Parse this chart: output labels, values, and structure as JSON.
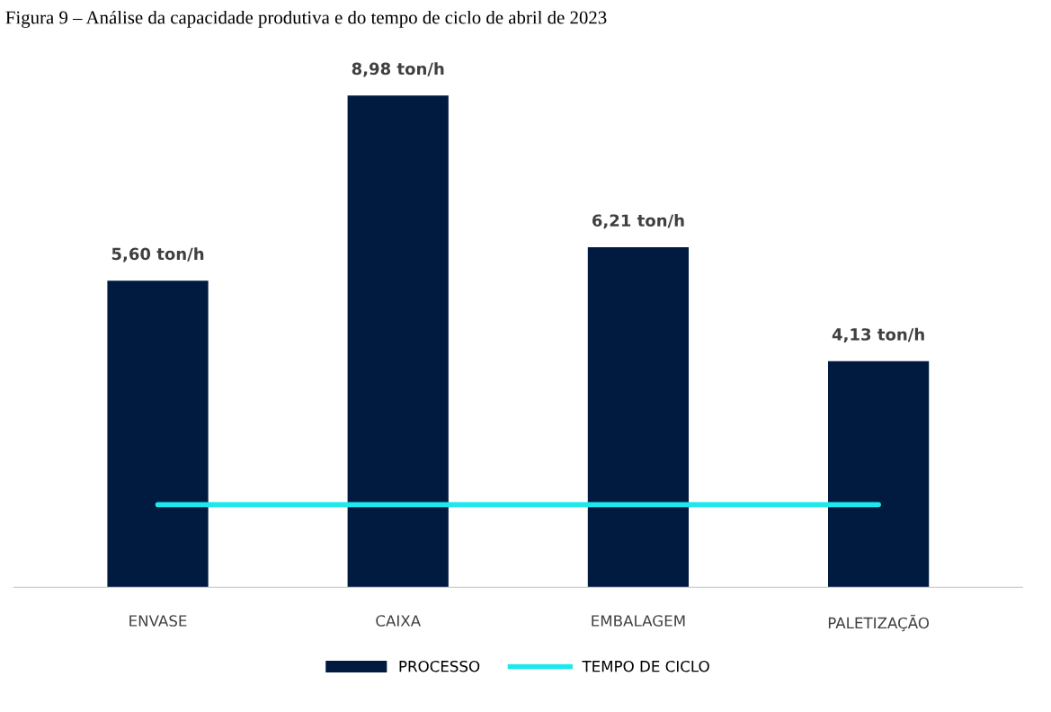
{
  "chart_data": {
    "type": "bar",
    "title": "Figura 9 – Análise da capacidade produtiva e do tempo de ciclo de abril de 2023",
    "categories": [
      "ENVASE",
      "CAIXA",
      "EMBALAGEM",
      "PALETIZAÇÃO"
    ],
    "series": [
      {
        "name": "PROCESSO",
        "color": "#001a40",
        "values": [
          5.6,
          8.98,
          6.21,
          4.13
        ],
        "value_labels": [
          "5,60 ton/h",
          "8,98 ton/h",
          "6,21 ton/h",
          "4,13 ton/h"
        ]
      },
      {
        "name": "TEMPO DE CICLO",
        "type": "line",
        "color": "#1ee8ee",
        "values": [
          1.51,
          1.51,
          1.51,
          1.51
        ]
      }
    ],
    "legend": "bottom",
    "grid": false,
    "tick_labels": "x"
  }
}
